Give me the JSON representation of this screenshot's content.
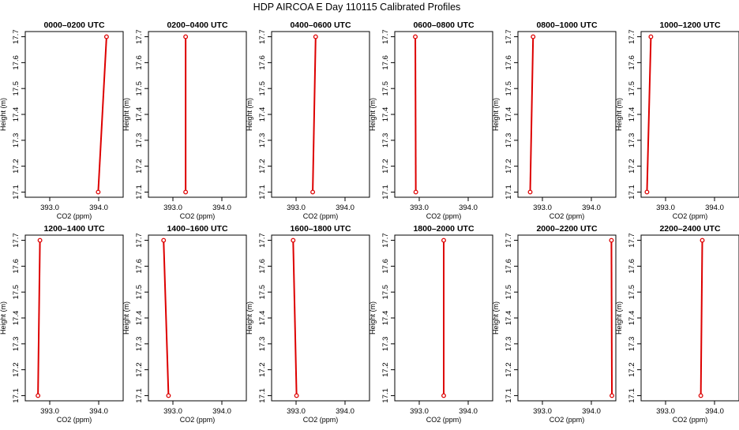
{
  "figure": {
    "title": "HDP AIRCOA E  Day 110115  Calibrated Profiles"
  },
  "colors": {
    "series": "#dd0000",
    "axis": "#000000",
    "background": "#ffffff"
  },
  "chart_data": [
    {
      "type": "line",
      "title": "0000–0200 UTC",
      "xlabel": "CO2 (ppm)",
      "ylabel": "Height (m)",
      "xlim": [
        392.5,
        394.5
      ],
      "ylim": [
        17.08,
        17.72
      ],
      "xticks": [
        "393.0",
        "394.0"
      ],
      "yticks": [
        "17.1",
        "17.2",
        "17.3",
        "17.4",
        "17.5",
        "17.6",
        "17.7"
      ],
      "grid": false,
      "legend": "none",
      "points": [
        {
          "x": 393.99,
          "y": 17.1
        },
        {
          "x": 394.16,
          "y": 17.7
        }
      ]
    },
    {
      "type": "line",
      "title": "0200–0400 UTC",
      "xlabel": "CO2 (ppm)",
      "ylabel": "Height (m)",
      "xlim": [
        392.5,
        394.5
      ],
      "ylim": [
        17.08,
        17.72
      ],
      "xticks": [
        "393.0",
        "394.0"
      ],
      "yticks": [
        "17.1",
        "17.2",
        "17.3",
        "17.4",
        "17.5",
        "17.6",
        "17.7"
      ],
      "grid": false,
      "legend": "none",
      "points": [
        {
          "x": 393.26,
          "y": 17.1
        },
        {
          "x": 393.26,
          "y": 17.7
        }
      ]
    },
    {
      "type": "line",
      "title": "0400–0600 UTC",
      "xlabel": "CO2 (ppm)",
      "ylabel": "Height (m)",
      "xlim": [
        392.5,
        394.5
      ],
      "ylim": [
        17.08,
        17.72
      ],
      "xticks": [
        "393.0",
        "394.0"
      ],
      "yticks": [
        "17.1",
        "17.2",
        "17.3",
        "17.4",
        "17.5",
        "17.6",
        "17.7"
      ],
      "grid": false,
      "legend": "none",
      "points": [
        {
          "x": 393.34,
          "y": 17.1
        },
        {
          "x": 393.4,
          "y": 17.7
        }
      ]
    },
    {
      "type": "line",
      "title": "0600–0800 UTC",
      "xlabel": "CO2 (ppm)",
      "ylabel": "Height (m)",
      "xlim": [
        392.5,
        394.5
      ],
      "ylim": [
        17.08,
        17.72
      ],
      "xticks": [
        "393.0",
        "394.0"
      ],
      "yticks": [
        "17.1",
        "17.2",
        "17.3",
        "17.4",
        "17.5",
        "17.6",
        "17.7"
      ],
      "grid": false,
      "legend": "none",
      "points": [
        {
          "x": 392.93,
          "y": 17.1
        },
        {
          "x": 392.92,
          "y": 17.7
        }
      ]
    },
    {
      "type": "line",
      "title": "0800–1000 UTC",
      "xlabel": "CO2 (ppm)",
      "ylabel": "Height (m)",
      "xlim": [
        392.5,
        394.5
      ],
      "ylim": [
        17.08,
        17.72
      ],
      "xticks": [
        "393.0",
        "394.0"
      ],
      "yticks": [
        "17.1",
        "17.2",
        "17.3",
        "17.4",
        "17.5",
        "17.6",
        "17.7"
      ],
      "grid": false,
      "legend": "none",
      "points": [
        {
          "x": 392.75,
          "y": 17.1
        },
        {
          "x": 392.81,
          "y": 17.7
        }
      ]
    },
    {
      "type": "line",
      "title": "1000–1200 UTC",
      "xlabel": "CO2 (ppm)",
      "ylabel": "Height (m)",
      "xlim": [
        392.5,
        394.5
      ],
      "ylim": [
        17.08,
        17.72
      ],
      "xticks": [
        "393.0",
        "394.0"
      ],
      "yticks": [
        "17.1",
        "17.2",
        "17.3",
        "17.4",
        "17.5",
        "17.6",
        "17.7"
      ],
      "grid": false,
      "legend": "none",
      "points": [
        {
          "x": 392.62,
          "y": 17.1
        },
        {
          "x": 392.7,
          "y": 17.7
        }
      ]
    },
    {
      "type": "line",
      "title": "1200–1400 UTC",
      "xlabel": "CO2 (ppm)",
      "ylabel": "Height (m)",
      "xlim": [
        392.5,
        394.5
      ],
      "ylim": [
        17.08,
        17.72
      ],
      "xticks": [
        "393.0",
        "394.0"
      ],
      "yticks": [
        "17.1",
        "17.2",
        "17.3",
        "17.4",
        "17.5",
        "17.6",
        "17.7"
      ],
      "grid": false,
      "legend": "none",
      "points": [
        {
          "x": 392.76,
          "y": 17.1
        },
        {
          "x": 392.8,
          "y": 17.7
        }
      ]
    },
    {
      "type": "line",
      "title": "1400–1600 UTC",
      "xlabel": "CO2 (ppm)",
      "ylabel": "Height (m)",
      "xlim": [
        392.5,
        394.5
      ],
      "ylim": [
        17.08,
        17.72
      ],
      "xticks": [
        "393.0",
        "394.0"
      ],
      "yticks": [
        "17.1",
        "17.2",
        "17.3",
        "17.4",
        "17.5",
        "17.6",
        "17.7"
      ],
      "grid": false,
      "legend": "none",
      "points": [
        {
          "x": 392.91,
          "y": 17.1
        },
        {
          "x": 392.81,
          "y": 17.7
        }
      ]
    },
    {
      "type": "line",
      "title": "1600–1800 UTC",
      "xlabel": "CO2 (ppm)",
      "ylabel": "Height (m)",
      "xlim": [
        392.5,
        394.5
      ],
      "ylim": [
        17.08,
        17.72
      ],
      "xticks": [
        "393.0",
        "394.0"
      ],
      "yticks": [
        "17.1",
        "17.2",
        "17.3",
        "17.4",
        "17.5",
        "17.6",
        "17.7"
      ],
      "grid": false,
      "legend": "none",
      "points": [
        {
          "x": 393.01,
          "y": 17.1
        },
        {
          "x": 392.94,
          "y": 17.7
        }
      ]
    },
    {
      "type": "line",
      "title": "1800–2000 UTC",
      "xlabel": "CO2 (ppm)",
      "ylabel": "Height (m)",
      "xlim": [
        392.5,
        394.5
      ],
      "ylim": [
        17.08,
        17.72
      ],
      "xticks": [
        "393.0",
        "394.0"
      ],
      "yticks": [
        "17.1",
        "17.2",
        "17.3",
        "17.4",
        "17.5",
        "17.6",
        "17.7"
      ],
      "grid": false,
      "legend": "none",
      "points": [
        {
          "x": 393.5,
          "y": 17.1
        },
        {
          "x": 393.5,
          "y": 17.7
        }
      ]
    },
    {
      "type": "line",
      "title": "2000–2200 UTC",
      "xlabel": "CO2 (ppm)",
      "ylabel": "Height (m)",
      "xlim": [
        392.5,
        394.5
      ],
      "ylim": [
        17.08,
        17.72
      ],
      "xticks": [
        "393.0",
        "394.0"
      ],
      "yticks": [
        "17.1",
        "17.2",
        "17.3",
        "17.4",
        "17.5",
        "17.6",
        "17.7"
      ],
      "grid": false,
      "legend": "none",
      "points": [
        {
          "x": 394.42,
          "y": 17.1
        },
        {
          "x": 394.41,
          "y": 17.7
        }
      ]
    },
    {
      "type": "line",
      "title": "2200–2400 UTC",
      "xlabel": "CO2 (ppm)",
      "ylabel": "Height (m)",
      "xlim": [
        392.5,
        394.5
      ],
      "ylim": [
        17.08,
        17.72
      ],
      "xticks": [
        "393.0",
        "394.0"
      ],
      "yticks": [
        "17.1",
        "17.2",
        "17.3",
        "17.4",
        "17.5",
        "17.6",
        "17.7"
      ],
      "grid": false,
      "legend": "none",
      "points": [
        {
          "x": 393.72,
          "y": 17.1
        },
        {
          "x": 393.75,
          "y": 17.7
        }
      ]
    }
  ]
}
